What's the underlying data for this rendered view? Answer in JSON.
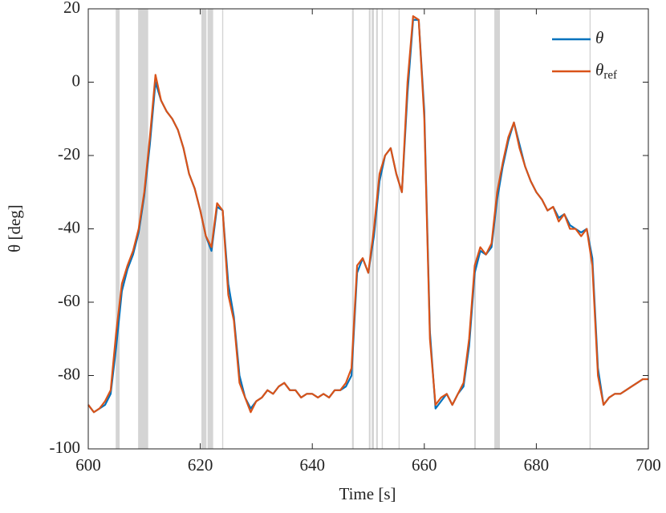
{
  "chart_data": {
    "type": "line",
    "xlabel": "Time [s]",
    "ylabel": "θ [deg]",
    "xlim": [
      600,
      700
    ],
    "ylim": [
      -100,
      20
    ],
    "xticks": [
      600,
      620,
      640,
      660,
      680,
      700
    ],
    "yticks": [
      -100,
      -80,
      -60,
      -40,
      -20,
      0,
      20
    ],
    "legend": "upper right",
    "shade_color": "#d4d4d4",
    "shaded_regions": [
      [
        604.9,
        605.6
      ],
      [
        608.9,
        610.7
      ],
      [
        620.2,
        621.1
      ],
      [
        621.3,
        622.3
      ],
      [
        623.9,
        624.1
      ],
      [
        647.1,
        647.4
      ],
      [
        650.1,
        650.4
      ],
      [
        650.6,
        651.0
      ],
      [
        651.4,
        651.7
      ],
      [
        652.4,
        652.6
      ],
      [
        655.4,
        655.6
      ],
      [
        668.9,
        669.2
      ],
      [
        672.5,
        673.5
      ],
      [
        689.5,
        689.7
      ]
    ],
    "x": [
      600,
      601,
      602,
      603,
      604,
      605,
      606,
      607,
      608,
      609,
      610,
      611,
      612,
      613,
      614,
      615,
      616,
      617,
      618,
      619,
      620,
      621,
      622,
      623,
      624,
      625,
      626,
      627,
      628,
      629,
      630,
      631,
      632,
      633,
      634,
      635,
      636,
      637,
      638,
      639,
      640,
      641,
      642,
      643,
      644,
      645,
      646,
      647,
      648,
      649,
      650,
      651,
      652,
      653,
      654,
      655,
      656,
      657,
      658,
      659,
      660,
      661,
      662,
      663,
      664,
      665,
      666,
      667,
      668,
      669,
      670,
      671,
      672,
      673,
      674,
      675,
      676,
      677,
      678,
      679,
      680,
      681,
      682,
      683,
      684,
      685,
      686,
      687,
      688,
      689,
      690,
      691,
      692,
      693,
      694,
      695,
      696,
      697,
      698,
      699,
      700
    ],
    "series": [
      {
        "name": "θ",
        "color": "#0072bd",
        "values": [
          -88,
          -90,
          -89,
          -88,
          -85,
          -72,
          -57,
          -51,
          -47,
          -41,
          -31,
          -17,
          0,
          -5,
          -8,
          -10,
          -13,
          -18,
          -25,
          -29,
          -35,
          -42,
          -46,
          -34,
          -35,
          -55,
          -64,
          -80,
          -86,
          -89,
          -87,
          -86,
          -84,
          -85,
          -83,
          -82,
          -84,
          -84,
          -86,
          -85,
          -85,
          -86,
          -85,
          -86,
          -84,
          -84,
          -83,
          -80,
          -52,
          -48,
          -52,
          -42,
          -27,
          -20,
          -18,
          -25,
          -30,
          -3,
          17,
          17,
          -8,
          -68,
          -89,
          -87,
          -85,
          -88,
          -85,
          -83,
          -72,
          -52,
          -46,
          -47,
          -45,
          -32,
          -23,
          -16,
          -11,
          -17,
          -23,
          -27,
          -30,
          -32,
          -35,
          -34,
          -37,
          -36,
          -39,
          -40,
          -41,
          -40,
          -48,
          -78,
          -88,
          -86,
          -85,
          -85,
          -84,
          -83,
          -82,
          -81,
          -81
        ]
      },
      {
        "name": "θ",
        "subscript": "ref",
        "color": "#d95319",
        "values": [
          -88,
          -90,
          -89,
          -87,
          -84,
          -68,
          -55,
          -50,
          -46,
          -40,
          -30,
          -15,
          2,
          -5,
          -8,
          -10,
          -13,
          -18,
          -25,
          -29,
          -35,
          -42,
          -45,
          -33,
          -35,
          -58,
          -65,
          -82,
          -86,
          -90,
          -87,
          -86,
          -84,
          -85,
          -83,
          -82,
          -84,
          -84,
          -86,
          -85,
          -85,
          -86,
          -85,
          -86,
          -84,
          -84,
          -82,
          -78,
          -50,
          -48,
          -52,
          -40,
          -25,
          -20,
          -18,
          -25,
          -30,
          0,
          18,
          17,
          -10,
          -70,
          -88,
          -86,
          -85,
          -88,
          -85,
          -82,
          -70,
          -50,
          -45,
          -47,
          -44,
          -30,
          -22,
          -15,
          -11,
          -18,
          -23,
          -27,
          -30,
          -32,
          -35,
          -34,
          -38,
          -36,
          -40,
          -40,
          -42,
          -40,
          -50,
          -80,
          -88,
          -86,
          -85,
          -85,
          -84,
          -83,
          -82,
          -81,
          -81
        ]
      }
    ]
  }
}
